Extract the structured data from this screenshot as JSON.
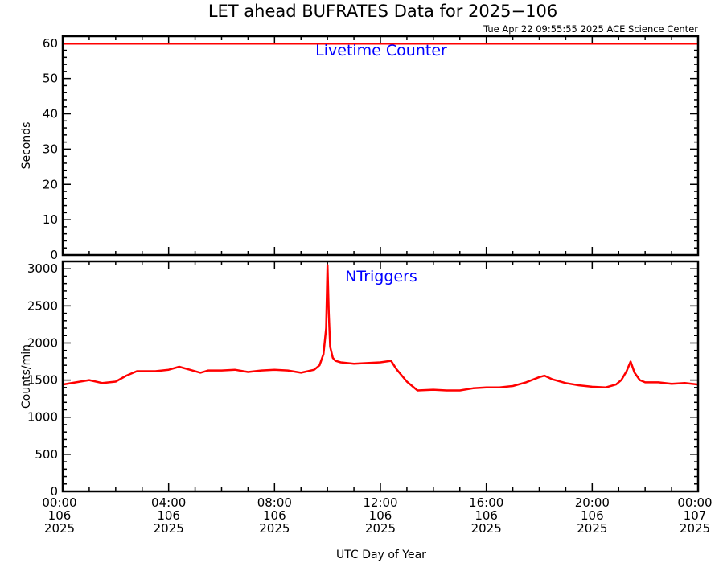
{
  "title": "LET ahead BUFRATES Data for 2025−106",
  "timestamp": "Tue Apr 22 09:55:55 2025 ACE Science Center",
  "colors": {
    "series": "#ff0000",
    "panel_label": "#0000ff",
    "frame": "#000000"
  },
  "x_axis": {
    "label": "UTC Day of Year",
    "ticks": [
      {
        "t": 0,
        "time": "00:00",
        "doy": "106",
        "year": "2025"
      },
      {
        "t": 4,
        "time": "04:00",
        "doy": "106",
        "year": "2025"
      },
      {
        "t": 8,
        "time": "08:00",
        "doy": "106",
        "year": "2025"
      },
      {
        "t": 12,
        "time": "12:00",
        "doy": "106",
        "year": "2025"
      },
      {
        "t": 16,
        "time": "16:00",
        "doy": "106",
        "year": "2025"
      },
      {
        "t": 20,
        "time": "20:00",
        "doy": "106",
        "year": "2025"
      },
      {
        "t": 24,
        "time": "00:00",
        "doy": "107",
        "year": "2025"
      }
    ]
  },
  "chart_data": [
    {
      "type": "line",
      "panel_label": "Livetime Counter",
      "ylabel": "Seconds",
      "xlabel": "UTC Day of Year",
      "xlim": [
        0,
        24
      ],
      "ylim": [
        0,
        62
      ],
      "yticks": [
        0,
        10,
        20,
        30,
        40,
        50,
        60
      ],
      "grid": false,
      "x": [
        0,
        24
      ],
      "y": [
        59.9,
        59.9
      ]
    },
    {
      "type": "line",
      "panel_label": "NTriggers",
      "ylabel": "Counts/min",
      "xlabel": "UTC Day of Year",
      "xlim": [
        0,
        24
      ],
      "ylim": [
        0,
        3100
      ],
      "yticks": [
        0,
        500,
        1000,
        1500,
        2000,
        2500,
        3000
      ],
      "grid": false,
      "x": [
        0,
        0.5,
        1.0,
        1.5,
        2.0,
        2.4,
        2.8,
        3.5,
        4.0,
        4.4,
        4.8,
        5.2,
        5.5,
        6.0,
        6.5,
        7.0,
        7.5,
        8.0,
        8.5,
        9.0,
        9.5,
        9.7,
        9.85,
        9.95,
        10.0,
        10.05,
        10.1,
        10.2,
        10.3,
        10.5,
        11.0,
        11.5,
        12.0,
        12.4,
        12.6,
        13.0,
        13.4,
        14.0,
        14.5,
        15.0,
        15.5,
        16.0,
        16.5,
        17.0,
        17.5,
        18.0,
        18.2,
        18.5,
        19.0,
        19.5,
        20.0,
        20.5,
        20.9,
        21.1,
        21.3,
        21.45,
        21.6,
        21.8,
        22.0,
        22.5,
        23.0,
        23.5,
        24.0
      ],
      "y": [
        1440,
        1470,
        1500,
        1460,
        1480,
        1560,
        1620,
        1620,
        1640,
        1680,
        1640,
        1600,
        1630,
        1630,
        1640,
        1610,
        1630,
        1640,
        1630,
        1600,
        1640,
        1700,
        1850,
        2200,
        3050,
        2400,
        1950,
        1800,
        1760,
        1740,
        1720,
        1730,
        1740,
        1760,
        1650,
        1480,
        1360,
        1370,
        1360,
        1360,
        1390,
        1400,
        1400,
        1420,
        1470,
        1540,
        1560,
        1510,
        1460,
        1430,
        1410,
        1400,
        1440,
        1500,
        1620,
        1750,
        1600,
        1500,
        1470,
        1470,
        1450,
        1460,
        1440
      ]
    }
  ]
}
